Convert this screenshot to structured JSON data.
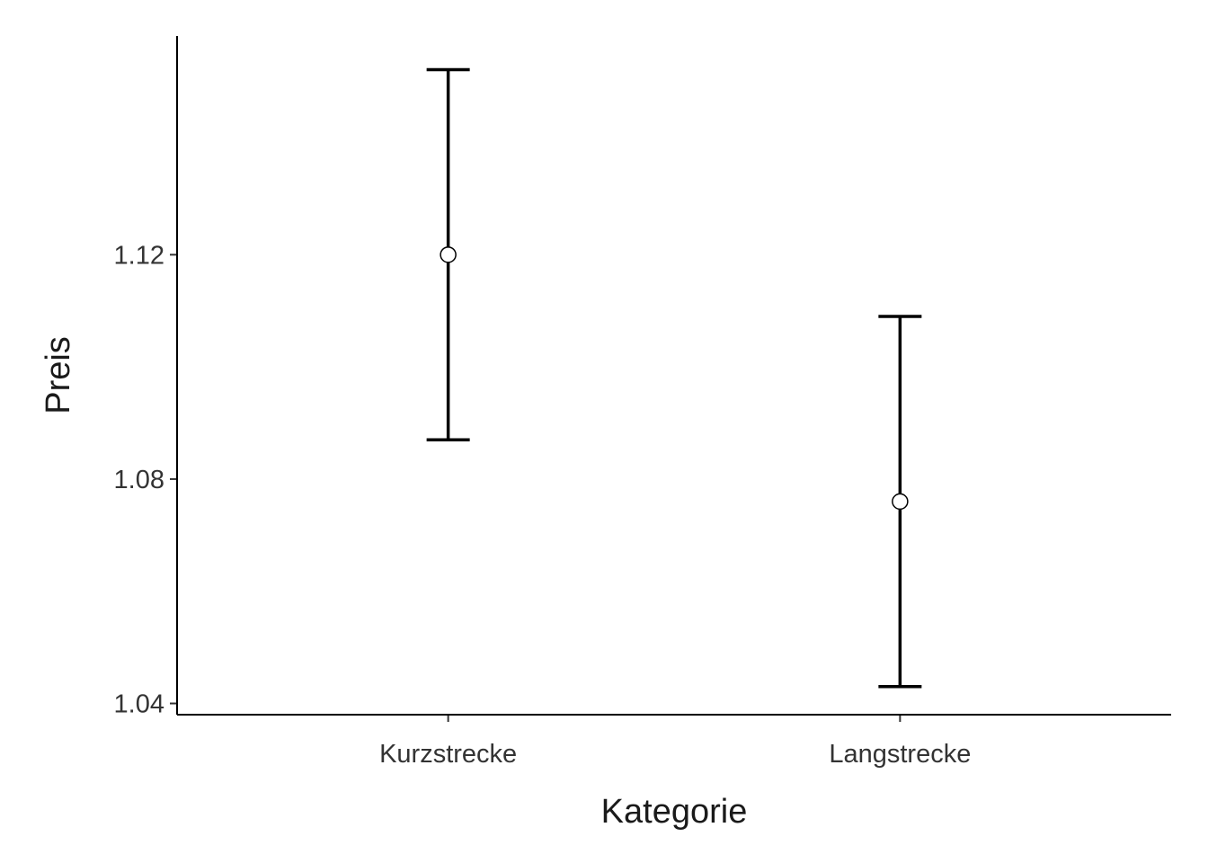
{
  "chart_data": {
    "type": "errorbar",
    "xlabel": "Kategorie",
    "ylabel": "Preis",
    "categories": [
      "Kurzstrecke",
      "Langstrecke"
    ],
    "means": [
      1.12,
      1.076
    ],
    "lower": [
      1.087,
      1.043
    ],
    "upper": [
      1.153,
      1.109
    ],
    "ylim": [
      1.038,
      1.159
    ],
    "yticks": [
      1.04,
      1.08,
      1.12
    ],
    "ytick_labels": [
      "1.04",
      "1.08",
      "1.12"
    ],
    "grid": false,
    "legend": "none"
  }
}
